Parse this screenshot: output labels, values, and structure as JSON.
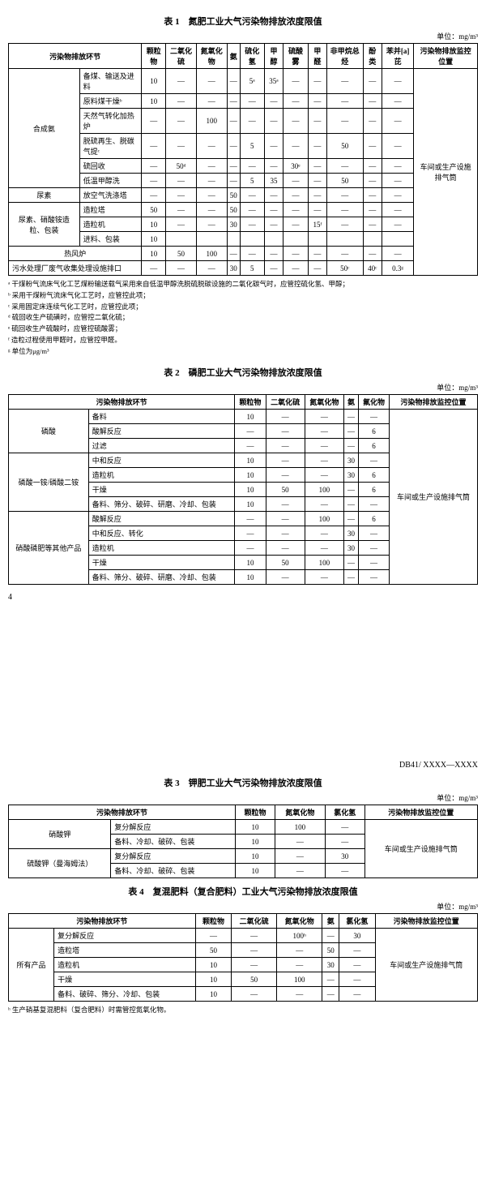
{
  "unit_label": "单位：mg/m³",
  "page_num": "4",
  "doc_id": "DB41/ XXXX—XXXX",
  "common": {
    "dash": "—",
    "monitor_loc": "车间或生产设施排气筒",
    "col_stage": "污染物排放环节",
    "col_monitor": "污染物排放监控位置",
    "col_pm": "颗粒物",
    "col_so2": "二氧化硫",
    "col_nox": "氮氧化物",
    "col_nh3": "氨",
    "col_h2s": "硫化氢",
    "col_meoh": "甲醇",
    "col_h2so4": "硫酸雾",
    "col_hcho": "甲醛",
    "col_nmhc": "非甲烷总烃",
    "col_phenol": "酚类",
    "col_bap": "苯并[a]芘",
    "col_f": "氟化物",
    "col_hcl": "氯化氢"
  },
  "t1": {
    "title": "表 1　氮肥工业大气污染物排放浓度限值",
    "cat_a": "合成氨",
    "cat_b": "尿素",
    "cat_c": "尿素、硝酸铵造粒、包装",
    "r1": {
      "n": "备煤、输送及进料",
      "pm": "10",
      "h2s": "5ᵃ",
      "meoh": "35ᵃ"
    },
    "r2": {
      "n": "原料煤干燥ᵇ",
      "pm": "10"
    },
    "r3": {
      "n": "天然气转化加热炉",
      "nox": "100"
    },
    "r4": {
      "n": "脱硫再生、脱碳气提ᶜ",
      "h2s": "5",
      "nmhc": "50"
    },
    "r5": {
      "n": "硫回收",
      "so2": "50ᵈ",
      "h2so4": "30ᵉ"
    },
    "r6": {
      "n": "低温甲醇洗",
      "h2s": "5",
      "meoh": "35",
      "nmhc": "50"
    },
    "r7": {
      "n": "放空气洗涤塔",
      "nh3": "50"
    },
    "r8": {
      "n": "造粒塔",
      "pm": "50",
      "nh3": "50"
    },
    "r9": {
      "n": "造粒机",
      "pm": "10",
      "nh3": "30",
      "hcho": "15ᶠ"
    },
    "r10": {
      "n": "进料、包装",
      "pm": "10"
    },
    "r11": {
      "n": "热风炉",
      "pm": "10",
      "so2": "50",
      "nox": "100"
    },
    "r12": {
      "n": "污水处理厂废气收集处理设施排口",
      "nh3": "30",
      "h2s": "5",
      "nmhc": "50ᶜ",
      "phenol": "40ᶜ",
      "bap": "0.3ᵍ"
    },
    "notes": [
      "ᵃ 干煤粉气流床气化工艺煤粉输送载气采用来自低温甲醇洗脱硫脱碳设施的二氧化碳气时，应管控硫化氢、甲醇；",
      "ᵇ 采用干煤粉气流床气化工艺时，应管控此项；",
      "ᶜ 采用固定床连续气化工艺时，应管控此项；",
      "ᵈ 硫回收生产硫磺时，应管控二氧化硫；",
      "ᵉ 硫回收生产硫酸时，应管控硫酸雾；",
      "ᶠ 造粒过程使用甲醛时，应管控甲醛。",
      "ᵍ 单位为μg/m³"
    ]
  },
  "t2": {
    "title": "表 2　磷肥工业大气污染物排放浓度限值",
    "cat_a": "磷酸",
    "cat_b": "磷酸一铵/磷酸二铵",
    "cat_c": "硝酸磷肥等其他产品",
    "rows": {
      "a1": {
        "n": "备料",
        "pm": "10"
      },
      "a2": {
        "n": "酸解反应",
        "f": "6"
      },
      "a3": {
        "n": "过滤",
        "f": "6"
      },
      "b1": {
        "n": "中和反应",
        "pm": "10",
        "nh3": "30"
      },
      "b2": {
        "n": "造粒机",
        "pm": "10",
        "nh3": "30",
        "f": "6"
      },
      "b3": {
        "n": "干燥",
        "pm": "10",
        "so2": "50",
        "nox": "100",
        "f": "6"
      },
      "b4": {
        "n": "备料、筛分、破碎、研磨、冷却、包装",
        "pm": "10"
      },
      "c1": {
        "n": "酸解反应",
        "nox": "100",
        "f": "6"
      },
      "c2": {
        "n": "中和反应、转化",
        "nh3": "30"
      },
      "c3": {
        "n": "造粒机",
        "nh3": "30"
      },
      "c4": {
        "n": "干燥",
        "pm": "10",
        "so2": "50",
        "nox": "100"
      },
      "c5": {
        "n": "备料、筛分、破碎、研磨、冷却、包装",
        "pm": "10"
      }
    }
  },
  "t3": {
    "title": "表 3　钾肥工业大气污染物排放浓度限值",
    "cat_a": "硝酸钾",
    "cat_b": "硫酸钾（曼海姆法）",
    "rows": {
      "a1": {
        "n": "复分解反应",
        "pm": "10",
        "nox": "100"
      },
      "a2": {
        "n": "备料、冷却、破碎、包装",
        "pm": "10"
      },
      "b1": {
        "n": "复分解反应",
        "pm": "10",
        "hcl": "30"
      },
      "b2": {
        "n": "备料、冷却、破碎、包装",
        "pm": "10"
      }
    }
  },
  "t4": {
    "title": "表 4　复混肥料（复合肥料）工业大气污染物排放浓度限值",
    "cat": "所有产品",
    "rows": {
      "r1": {
        "n": "复分解反应",
        "nox": "100ʰ",
        "hcl": "30"
      },
      "r2": {
        "n": "造粒塔",
        "pm": "50",
        "nh3": "50"
      },
      "r3": {
        "n": "造粒机",
        "pm": "10",
        "nh3": "30"
      },
      "r4": {
        "n": "干燥",
        "pm": "10",
        "so2": "50",
        "nox": "100"
      },
      "r5": {
        "n": "备料、破碎、筛分、冷却、包装",
        "pm": "10"
      }
    },
    "note": "ʰ 生产硝基复混肥料（复合肥料）时需管控氮氧化物。"
  }
}
